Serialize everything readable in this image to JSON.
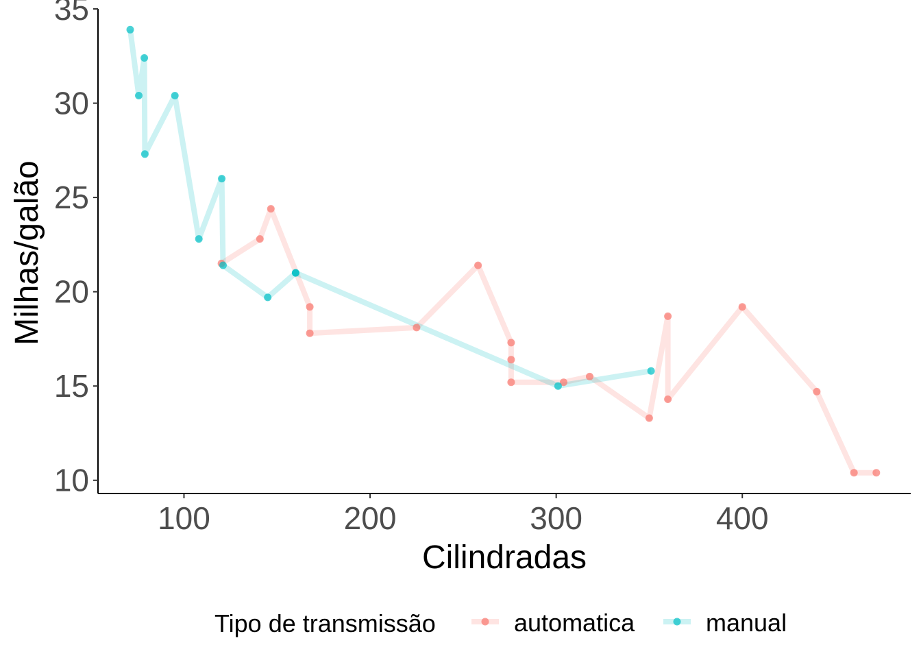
{
  "chart_data": {
    "type": "line",
    "title": "",
    "xlabel": "Cilindradas",
    "ylabel": "Milhas/galão",
    "xlim": [
      53.8,
      490.5
    ],
    "ylim": [
      9.3,
      35.0
    ],
    "xticks": [
      100,
      200,
      300,
      400
    ],
    "yticks": [
      10,
      15,
      20,
      25,
      30,
      35
    ],
    "grid": false,
    "legend_position": "bottom",
    "legend_title": "Tipo de transmissão",
    "series": [
      {
        "name": "automatica",
        "color": "#F8766D",
        "points": [
          [
            120.1,
            21.5
          ],
          [
            140.8,
            22.8
          ],
          [
            146.7,
            24.4
          ],
          [
            167.6,
            19.2
          ],
          [
            167.6,
            17.8
          ],
          [
            225,
            18.1
          ],
          [
            258,
            21.4
          ],
          [
            275.8,
            17.3
          ],
          [
            275.8,
            16.4
          ],
          [
            275.8,
            15.2
          ],
          [
            304,
            15.2
          ],
          [
            318,
            15.5
          ],
          [
            350,
            13.3
          ],
          [
            360,
            18.7
          ],
          [
            360,
            14.3
          ],
          [
            400,
            19.2
          ],
          [
            440,
            14.7
          ],
          [
            460,
            10.4
          ],
          [
            472,
            10.4
          ]
        ]
      },
      {
        "name": "manual",
        "color": "#00BFC4",
        "points": [
          [
            71.1,
            33.9
          ],
          [
            75.7,
            30.4
          ],
          [
            78.7,
            32.4
          ],
          [
            79,
            27.3
          ],
          [
            95.1,
            30.4
          ],
          [
            108,
            22.8
          ],
          [
            120.3,
            26.0
          ],
          [
            121,
            21.4
          ],
          [
            145,
            19.7
          ],
          [
            160,
            21.0
          ],
          [
            160,
            21.0
          ],
          [
            301,
            15.0
          ],
          [
            351,
            15.8
          ]
        ]
      }
    ]
  }
}
